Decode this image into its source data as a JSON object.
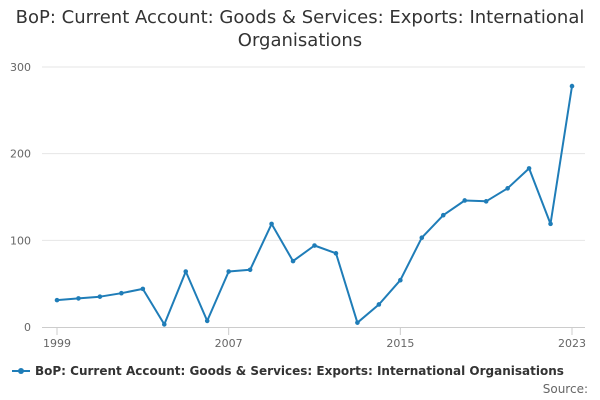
{
  "chart_data": {
    "type": "line",
    "title": "BoP: Current Account: Goods & Services: Exports: International Organisations",
    "xlabel": "",
    "ylabel": "",
    "x": [
      1999,
      2000,
      2001,
      2002,
      2003,
      2004,
      2005,
      2006,
      2007,
      2008,
      2009,
      2010,
      2011,
      2012,
      2013,
      2014,
      2015,
      2016,
      2017,
      2018,
      2019,
      2020,
      2021,
      2022,
      2023
    ],
    "series": [
      {
        "name": "BoP: Current Account: Goods & Services: Exports: International Organisations",
        "values": [
          31,
          33,
          35,
          39,
          44,
          3,
          64,
          7,
          64,
          66,
          119,
          76,
          94,
          85,
          5,
          26,
          54,
          103,
          129,
          146,
          145,
          160,
          183,
          119,
          278
        ]
      }
    ],
    "xlim": [
      1999,
      2023
    ],
    "ylim": [
      0,
      300
    ],
    "x_ticks": [
      1999,
      2007,
      2015,
      2023
    ],
    "y_ticks": [
      0,
      100,
      200,
      300
    ],
    "grid": true,
    "legend": "bottom-left",
    "color": "#1f7db8"
  },
  "source_label": "Source:"
}
